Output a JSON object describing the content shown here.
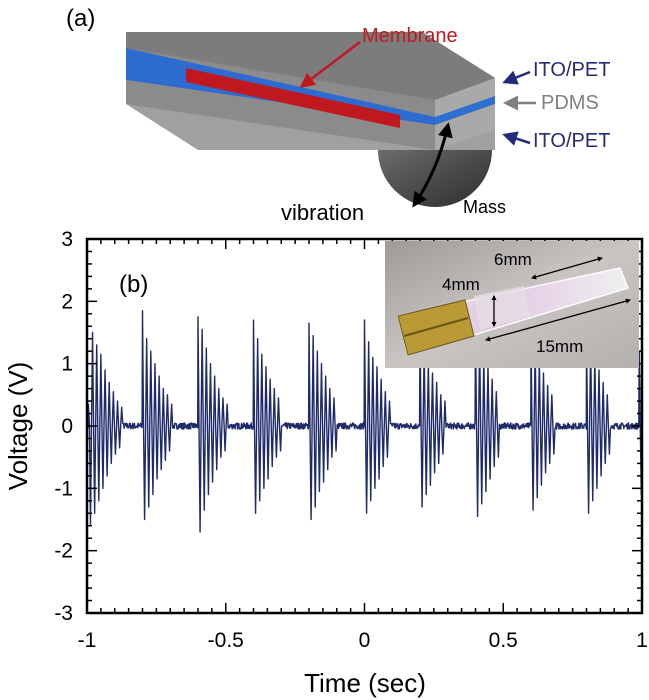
{
  "panel_a": {
    "label": "(a)",
    "membrane_label": "Membrane",
    "top_layer_label": "ITO/PET",
    "middle_layer_label": "PDMS",
    "bottom_layer_label": "ITO/PET",
    "vibration_label": "vibration",
    "mass_label": "Mass",
    "colors": {
      "membrane": "#c0181f",
      "ito": "#262a7c",
      "pdms": "#808080",
      "layer_blue": "#2f6fd0",
      "body_grey": "#9a9a9a"
    }
  },
  "panel_b": {
    "label": "(b)",
    "inset": {
      "dim_length": "15mm",
      "dim_width": "4mm",
      "dim_membrane": "6mm"
    }
  },
  "chart_data": {
    "type": "line",
    "xlabel": "Time (sec)",
    "ylabel": "Voltage (V)",
    "xlim": [
      -1,
      1
    ],
    "ylim": [
      -3,
      3
    ],
    "x_ticks": [
      "-1",
      "-0.5",
      "0",
      "0.5",
      "1"
    ],
    "y_ticks": [
      "3",
      "2",
      "1",
      "0",
      "-1",
      "-2",
      "-3"
    ],
    "grid": false,
    "series": [
      {
        "color": "#1f2a6b",
        "baseline_noise": 0.05,
        "spike_groups": [
          {
            "t": -0.995,
            "peaks": [
              0.35,
              -1.6,
              1.5,
              -1.4,
              1.3,
              -1.2,
              1.15,
              -1.0,
              0.9,
              -0.8,
              0.7,
              -0.6,
              0.55,
              -0.45,
              0.4,
              -0.35,
              0.3
            ]
          },
          {
            "t": -0.8,
            "peaks": [
              1.85,
              -1.5,
              1.4,
              -1.3,
              1.2,
              -1.1,
              1.0,
              -0.85,
              0.8,
              -0.7,
              0.6,
              -0.55,
              0.5,
              -0.4,
              0.35
            ]
          },
          {
            "t": -0.6,
            "peaks": [
              1.75,
              -1.7,
              1.55,
              -1.35,
              1.25,
              -1.1,
              1.0,
              -0.9,
              0.8,
              -0.7,
              0.6,
              -0.5,
              0.45,
              -0.4,
              0.35
            ]
          },
          {
            "t": -0.4,
            "peaks": [
              1.7,
              -1.4,
              1.4,
              -1.2,
              1.15,
              -1.0,
              0.95,
              -0.85,
              0.75,
              -0.65,
              0.6,
              -0.5,
              0.45,
              -0.4
            ]
          },
          {
            "t": -0.2,
            "peaks": [
              1.65,
              -1.5,
              1.45,
              -1.3,
              1.2,
              -1.05,
              1.0,
              -0.9,
              0.8,
              -0.7,
              0.6,
              -0.5,
              0.45,
              -0.4
            ]
          },
          {
            "t": 0.0,
            "peaks": [
              1.7,
              -1.4,
              1.35,
              -1.2,
              1.1,
              -1.0,
              0.95,
              -0.85,
              0.75,
              -0.65,
              0.55,
              -0.5,
              0.4
            ]
          },
          {
            "t": 0.2,
            "peaks": [
              1.55,
              -1.3,
              1.25,
              -1.1,
              1.0,
              -0.95,
              0.85,
              -0.75,
              0.7,
              -0.6,
              0.5,
              -0.45,
              0.4
            ]
          },
          {
            "t": 0.4,
            "peaks": [
              1.55,
              -1.45,
              1.4,
              -1.25,
              1.15,
              -1.05,
              0.95,
              -0.85,
              0.75,
              -0.65,
              0.55,
              -0.5
            ]
          },
          {
            "t": 0.6,
            "peaks": [
              1.5,
              -1.35,
              1.3,
              -1.15,
              1.05,
              -0.95,
              0.85,
              -0.75,
              0.65,
              -0.6,
              0.5,
              -0.45
            ]
          },
          {
            "t": 0.8,
            "peaks": [
              1.45,
              -1.4,
              1.35,
              -1.2,
              1.1,
              -1.0,
              0.9,
              -0.8,
              0.7,
              -0.6,
              0.5,
              -0.45
            ]
          },
          {
            "t": 0.99,
            "peaks": [
              1.2,
              -1.1,
              1.0
            ]
          }
        ]
      }
    ]
  }
}
